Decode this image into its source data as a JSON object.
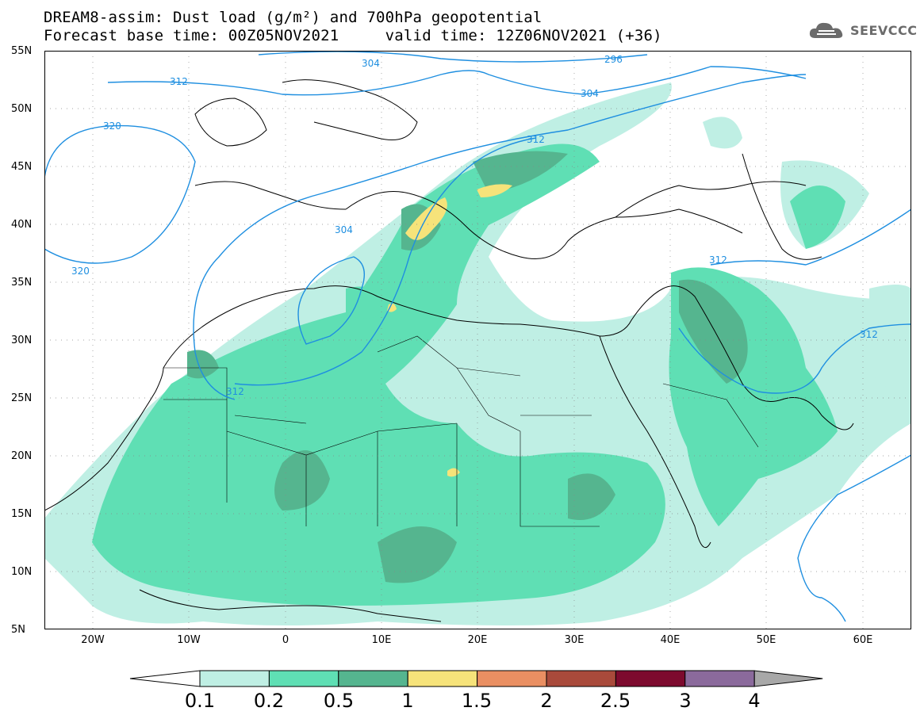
{
  "title": {
    "line1": "DREAM8-assim: Dust load (g/m²) and 700hPa geopotential",
    "line2": "Forecast base time: 00Z05NOV2021     valid time: 12Z06NOV2021 (+36)"
  },
  "logo": {
    "text": "SEEVCCC",
    "icon": "cloud-icon"
  },
  "axes": {
    "lat_labels": [
      "55N",
      "50N",
      "45N",
      "40N",
      "35N",
      "30N",
      "25N",
      "20N",
      "15N",
      "10N",
      "5N"
    ],
    "lon_labels": [
      "20W",
      "10W",
      "0",
      "10E",
      "20E",
      "30E",
      "40E",
      "50E",
      "60E"
    ],
    "lat_range": [
      5,
      55
    ],
    "lon_range": [
      -25,
      65
    ]
  },
  "contours": {
    "labels": [
      "296",
      "304",
      "304",
      "304",
      "312",
      "312",
      "312",
      "312",
      "312",
      "320",
      "320"
    ],
    "color": "#1f8fe0"
  },
  "colorbar": {
    "levels": [
      "0.1",
      "0.2",
      "0.5",
      "1",
      "1.5",
      "2",
      "2.5",
      "3",
      "4"
    ],
    "colors": [
      "#ffffff",
      "#bfefe4",
      "#5fdfb4",
      "#55b58f",
      "#f6e37a",
      "#ea8f62",
      "#a94a3b",
      "#7d0a2e",
      "#8b6a9c",
      "#a8a8a8"
    ]
  }
}
